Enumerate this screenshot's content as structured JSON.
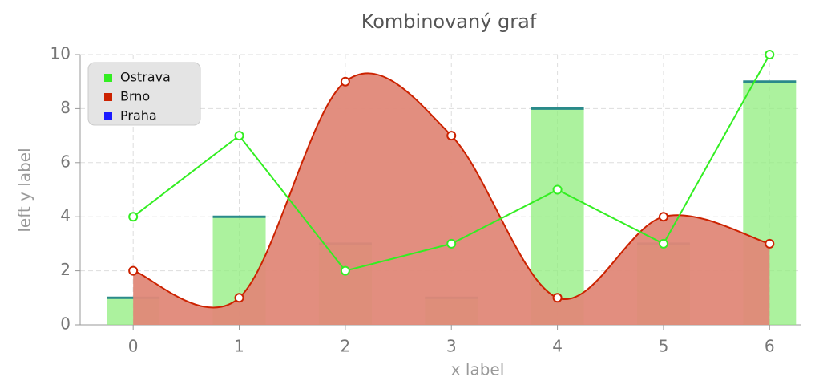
{
  "chart_data": {
    "type": "combo",
    "title": "Kombinovaný graf",
    "x_label": "x label",
    "y_label": "left y label",
    "x": [
      0,
      1,
      2,
      3,
      4,
      5,
      6
    ],
    "xlim": [
      -0.5,
      6.3
    ],
    "xticks": [
      0,
      1,
      2,
      3,
      4,
      5,
      6
    ],
    "ylim": [
      0,
      10
    ],
    "yticks": [
      0,
      2,
      4,
      6,
      8,
      10
    ],
    "grid": true,
    "legend": "top-left",
    "series": [
      {
        "name": "Ostrava",
        "type": "line",
        "color": "#33ee22",
        "values": [
          4,
          7,
          2,
          3,
          5,
          3,
          10
        ]
      },
      {
        "name": "Brno",
        "type": "area-spline",
        "color": "#cc2200",
        "fill": "#e08878",
        "values": [
          2,
          1,
          9,
          7,
          1,
          4,
          3
        ]
      },
      {
        "name": "Praha",
        "type": "bar",
        "color": "#1a1aff",
        "fill": "#90ee7e",
        "values": [
          1,
          4,
          3,
          1,
          8,
          3,
          9
        ]
      }
    ]
  }
}
